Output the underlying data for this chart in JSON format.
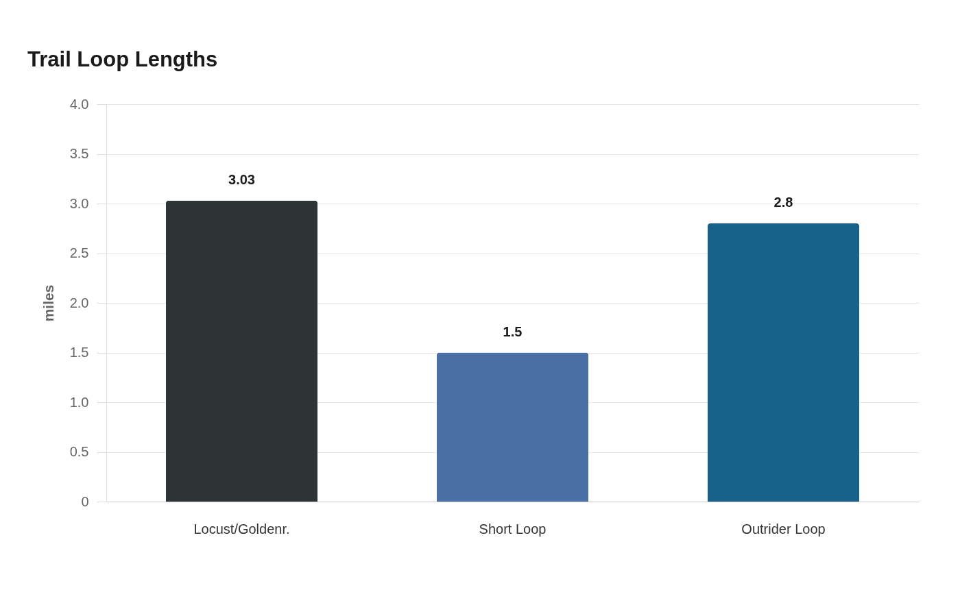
{
  "chart_data": {
    "type": "bar",
    "title": "Trail Loop Lengths",
    "ylabel": "miles",
    "categories": [
      "Locust/Goldenr.",
      "Short Loop",
      "Outrider Loop"
    ],
    "values": [
      3.03,
      1.5,
      2.8
    ],
    "colors": [
      "#2d3436",
      "#4a6fa5",
      "#186189"
    ],
    "ylim": [
      0,
      4
    ],
    "yticks": [
      0,
      0.5,
      {
        "value": 1,
        "label": "1.0"
      },
      1.5,
      {
        "value": 2,
        "label": "2.0"
      },
      2.5,
      {
        "value": 3,
        "label": "3.0"
      },
      3.5,
      {
        "value": 4,
        "label": "4.0"
      }
    ],
    "grid": "y",
    "data_labels": true
  }
}
